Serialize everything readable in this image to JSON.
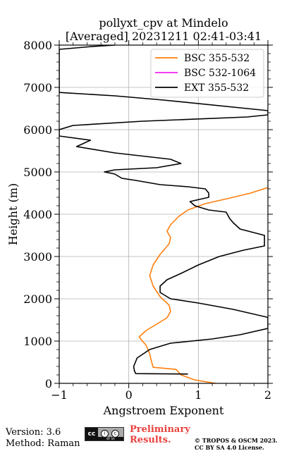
{
  "chart_data": {
    "type": "line",
    "title_line1": "pollyxt_cpv at Mindelo",
    "title_line2": "[Averaged] 20231211 02:41-03:41",
    "xlabel": "Angstroem Exponent",
    "ylabel": "Height (m)",
    "xlim": [
      -1,
      2
    ],
    "ylim": [
      0,
      8000
    ],
    "xticks": [
      -1,
      0,
      1,
      2
    ],
    "yticks": [
      0,
      1000,
      2000,
      3000,
      4000,
      5000,
      6000,
      7000,
      8000
    ],
    "grid": true,
    "legend_position": "top-right",
    "series": [
      {
        "name": "BSC 355-532",
        "color": "#ff7f0e",
        "points": [
          [
            1.25,
            0
          ],
          [
            0.95,
            80
          ],
          [
            0.75,
            200
          ],
          [
            0.68,
            330
          ],
          [
            0.35,
            380
          ],
          [
            0.33,
            500
          ],
          [
            0.3,
            700
          ],
          [
            0.25,
            900
          ],
          [
            0.18,
            1030
          ],
          [
            0.15,
            1100
          ],
          [
            0.25,
            1250
          ],
          [
            0.45,
            1450
          ],
          [
            0.55,
            1550
          ],
          [
            0.6,
            1700
          ],
          [
            0.58,
            1850
          ],
          [
            0.45,
            2050
          ],
          [
            0.35,
            2300
          ],
          [
            0.3,
            2550
          ],
          [
            0.35,
            2800
          ],
          [
            0.45,
            3050
          ],
          [
            0.58,
            3300
          ],
          [
            0.6,
            3450
          ],
          [
            0.55,
            3600
          ],
          [
            0.6,
            3750
          ],
          [
            0.72,
            3950
          ],
          [
            0.85,
            4100
          ],
          [
            1.1,
            4250
          ],
          [
            1.5,
            4400
          ],
          [
            1.75,
            4500
          ],
          [
            2.0,
            4630
          ]
        ]
      },
      {
        "name": "BSC 532-1064",
        "color": "#ee22ee",
        "points": []
      },
      {
        "name": "EXT 355-532",
        "color": "#000000",
        "points": [
          [
            0.85,
            220
          ],
          [
            0.1,
            230
          ],
          [
            0.08,
            300
          ],
          [
            0.07,
            400
          ],
          [
            0.12,
            600
          ],
          [
            0.3,
            800
          ],
          [
            0.6,
            950
          ],
          [
            1.2,
            1050
          ],
          [
            1.6,
            1150
          ],
          [
            2.0,
            1300
          ],
          [
            2.0,
            1560
          ],
          [
            1.5,
            1750
          ],
          [
            1.0,
            1900
          ],
          [
            0.6,
            2000
          ],
          [
            0.45,
            2150
          ],
          [
            0.45,
            2300
          ],
          [
            0.55,
            2450
          ],
          [
            0.75,
            2600
          ],
          [
            1.0,
            2800
          ],
          [
            1.3,
            3000
          ],
          [
            1.65,
            3150
          ],
          [
            1.95,
            3250
          ],
          [
            1.95,
            3500
          ],
          [
            1.6,
            3650
          ],
          [
            1.5,
            3800
          ],
          [
            1.45,
            3900
          ],
          [
            1.4,
            4050
          ],
          [
            1.15,
            4100
          ],
          [
            0.95,
            4200
          ],
          [
            0.88,
            4300
          ],
          [
            1.15,
            4400
          ],
          [
            1.15,
            4500
          ],
          [
            1.1,
            4600
          ],
          [
            0.85,
            4650
          ],
          [
            0.45,
            4700
          ],
          [
            0.1,
            4800
          ],
          [
            -0.1,
            4850
          ],
          [
            -0.2,
            4950
          ],
          [
            -0.35,
            5000
          ],
          [
            -0.2,
            5050
          ],
          [
            0.4,
            5100
          ],
          [
            0.75,
            5200
          ],
          [
            0.6,
            5300
          ],
          [
            -0.2,
            5450
          ],
          [
            -0.75,
            5600
          ],
          [
            -0.55,
            5750
          ],
          [
            -1.0,
            5850
          ],
          [
            -1.0,
            6000
          ],
          [
            -0.8,
            6100
          ],
          [
            0.2,
            6200
          ],
          [
            1.7,
            6300
          ],
          [
            2.0,
            6350
          ],
          [
            2.0,
            6450
          ],
          [
            0.5,
            6700
          ],
          [
            -0.2,
            6800
          ],
          [
            -1.0,
            6880
          ],
          [
            -1.0,
            7900
          ],
          [
            -0.5,
            7970
          ],
          [
            -0.2,
            8000
          ]
        ]
      }
    ]
  },
  "footer": {
    "version": "Version: 3.6",
    "method": "Method: Raman",
    "cc_label": "cc",
    "cc_icon_by": "i",
    "cc_icon_sa": "c",
    "cc_bar_text": "BY SA",
    "prelim_line1": "Preliminary",
    "prelim_line2": "Results.",
    "license_line1": "© TROPOS & OSCM 2023.",
    "license_line2": "CC BY SA 4.0 License."
  }
}
